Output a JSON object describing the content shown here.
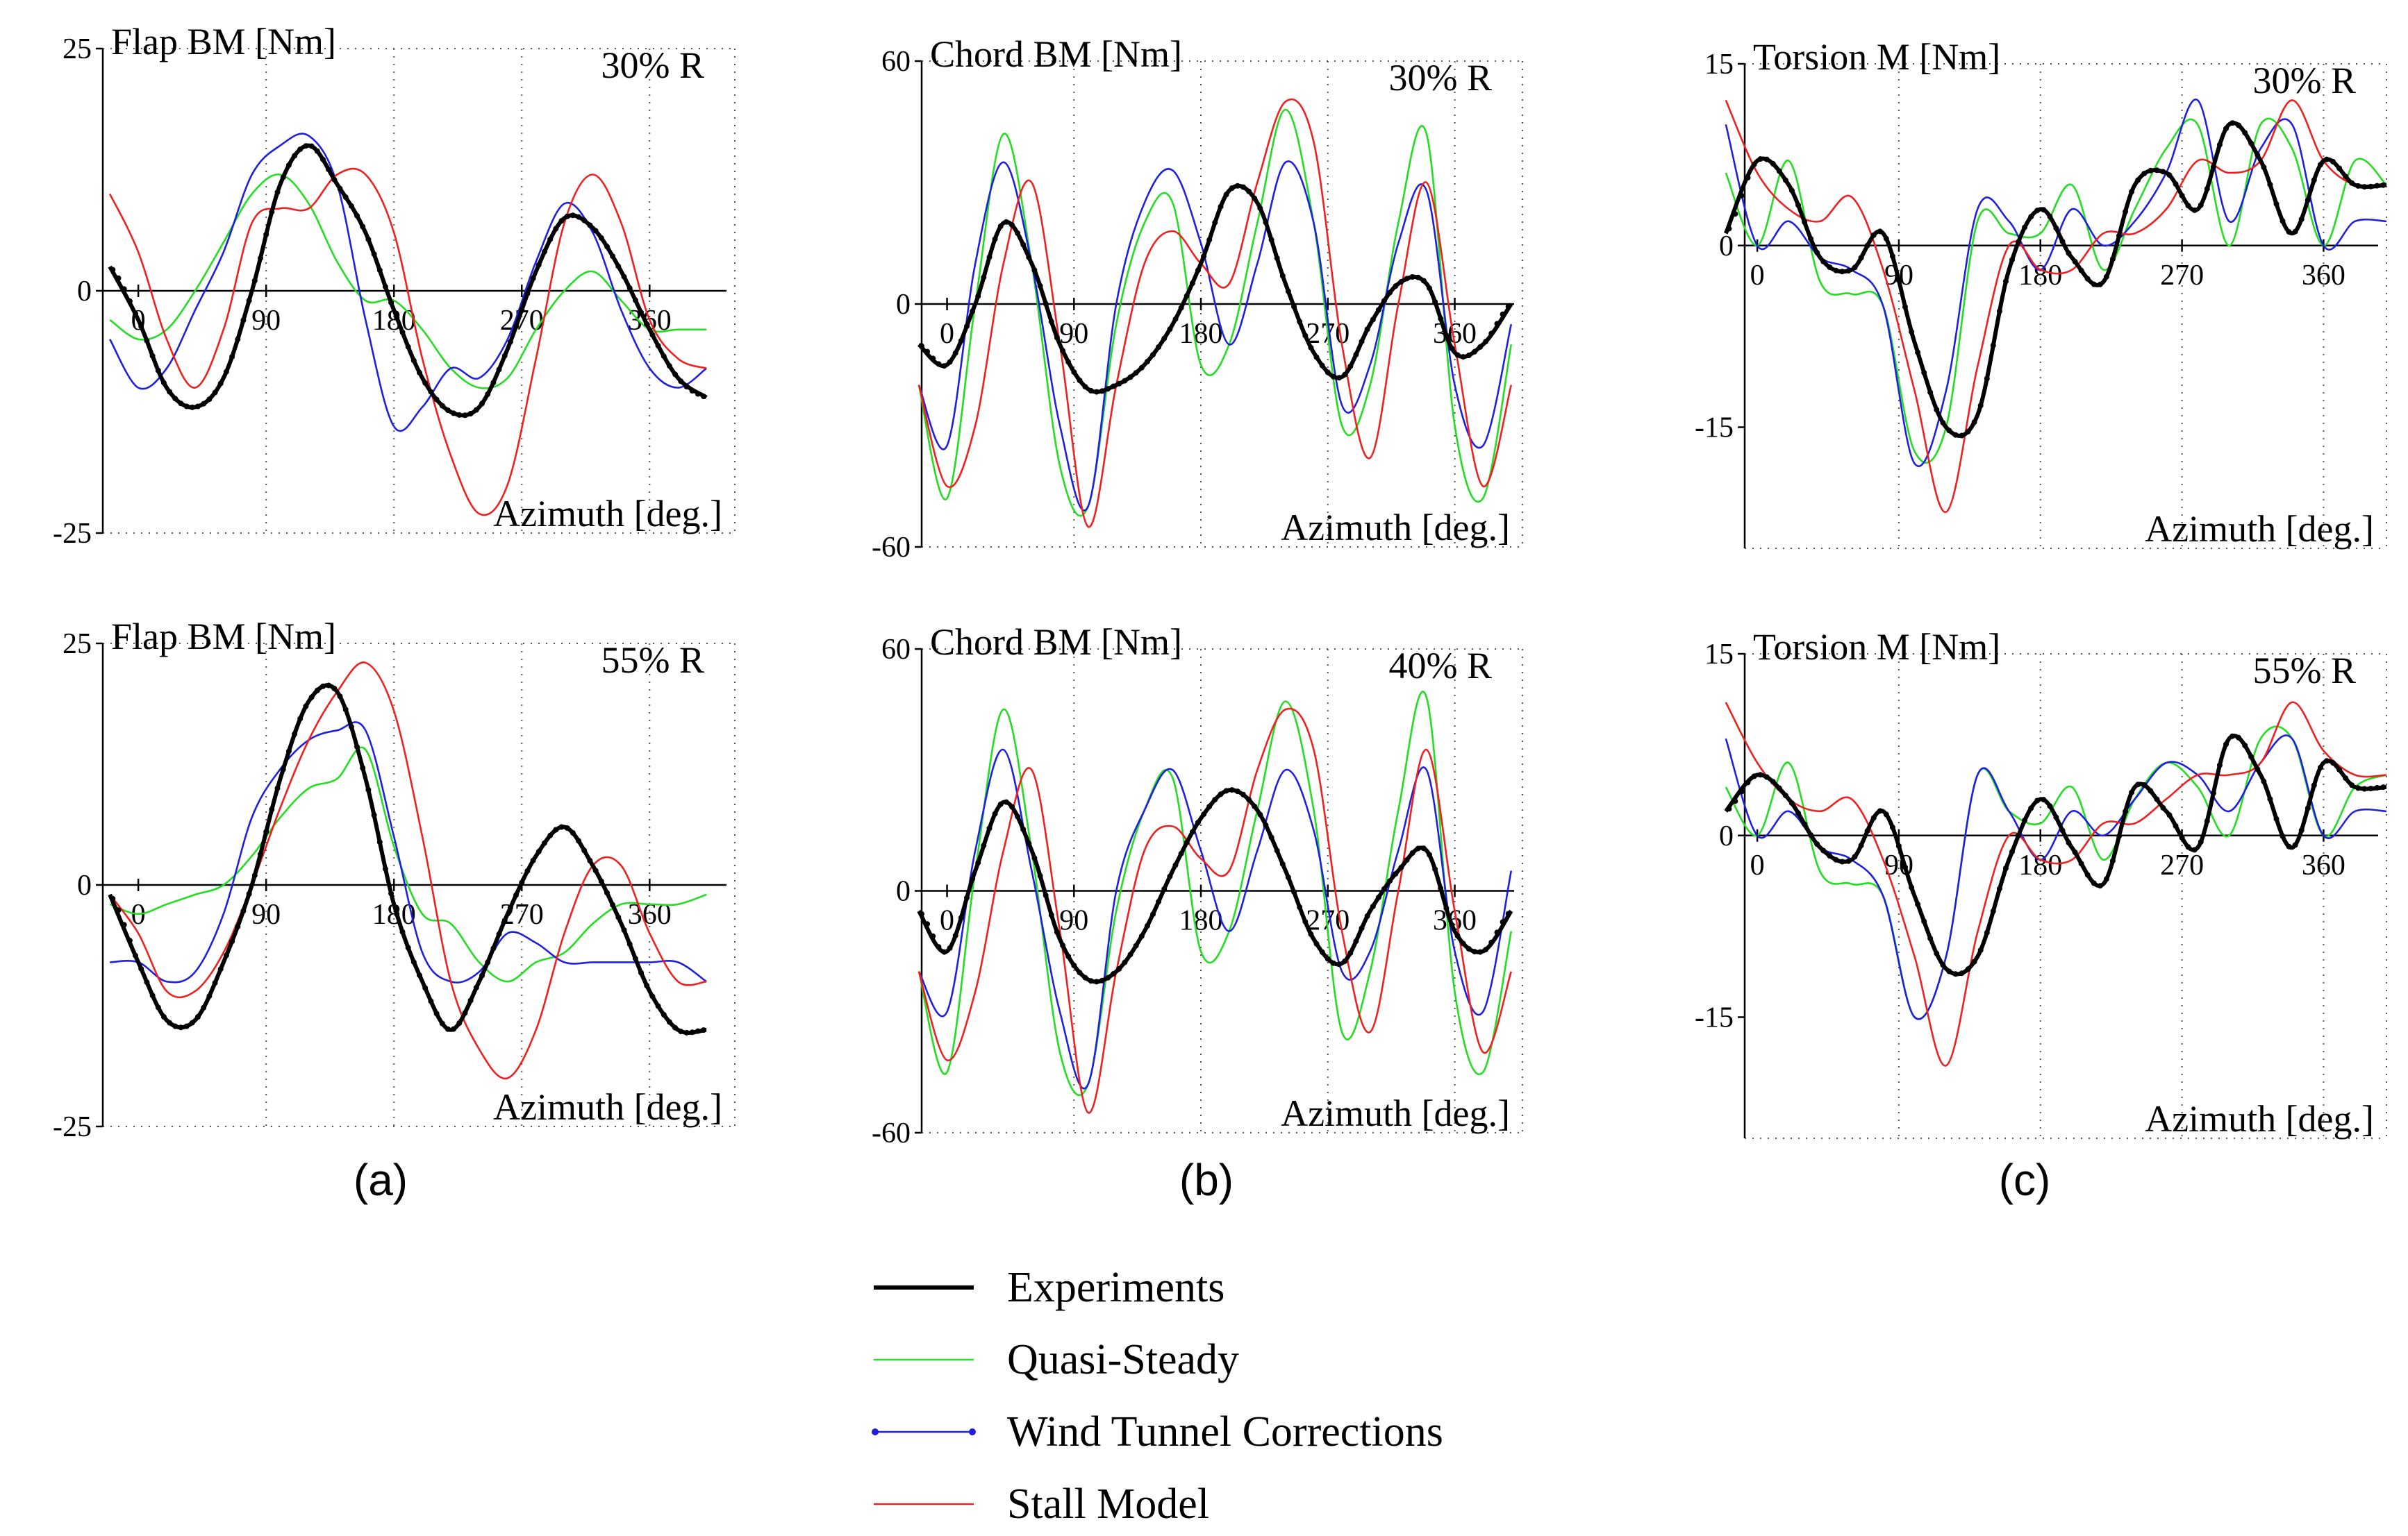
{
  "panel_labels": [
    "(a)",
    "(b)",
    "(c)"
  ],
  "legend": [
    {
      "label": "Experiments",
      "color": "#000000"
    },
    {
      "label": "Quasi-Steady",
      "color": "#22dd22"
    },
    {
      "label": "Wind Tunnel Corrections",
      "color": "#1f1fe0"
    },
    {
      "label": "Stall Model",
      "color": "#ee2020"
    }
  ],
  "chart_data": [
    {
      "type": "line",
      "title": "Flap BM [Nm]",
      "station": "30% R",
      "xlabel": "Azimuth [deg.]",
      "xlim": [
        -25,
        420
      ],
      "ylim": [
        -25,
        25
      ],
      "xticks": [
        0,
        90,
        180,
        270,
        360
      ],
      "yticks": [
        25,
        0,
        -25
      ],
      "x": [
        -20,
        0,
        20,
        40,
        60,
        80,
        100,
        120,
        140,
        160,
        180,
        200,
        220,
        240,
        260,
        280,
        300,
        320,
        340,
        360,
        380,
        400
      ],
      "series": [
        {
          "name": "Experiments",
          "values": [
            2.5,
            -3,
            -10,
            -12,
            -9,
            0,
            11,
            15,
            11,
            6,
            -2,
            -9,
            -12.5,
            -12,
            -6,
            2,
            7.5,
            6.5,
            2,
            -4,
            -9,
            -11
          ]
        },
        {
          "name": "Quasi-Steady",
          "values": [
            -3,
            -5,
            -4,
            0,
            5,
            10,
            12,
            9,
            3,
            -1,
            -1,
            -4,
            -8,
            -10,
            -9,
            -4,
            0,
            2,
            -1,
            -4,
            -4,
            -4
          ]
        },
        {
          "name": "Wind Tunnel Corrections",
          "values": [
            -5,
            -10,
            -8,
            -2,
            4,
            12,
            15,
            16,
            11,
            -3,
            -14,
            -12,
            -8,
            -9,
            -5,
            3,
            9,
            6,
            -2,
            -8,
            -10,
            -8
          ]
        },
        {
          "name": "Stall Model",
          "values": [
            10,
            4,
            -5,
            -10,
            -4,
            7,
            8.5,
            8.5,
            12,
            12,
            6,
            -7,
            -17,
            -23,
            -20,
            -7,
            7,
            12,
            7,
            -3,
            -7,
            -8
          ]
        }
      ]
    },
    {
      "type": "line",
      "title": "Chord BM [Nm]",
      "station": "30% R",
      "xlabel": "Azimuth [deg.]",
      "xlim": [
        -18,
        408
      ],
      "ylim": [
        -60,
        60
      ],
      "xticks": [
        0,
        90,
        180,
        270,
        360
      ],
      "yticks": [
        60,
        0,
        -60
      ],
      "x": [
        -20,
        0,
        20,
        40,
        60,
        80,
        100,
        120,
        140,
        160,
        180,
        200,
        220,
        240,
        260,
        280,
        300,
        320,
        340,
        360,
        380,
        400
      ],
      "series": [
        {
          "name": "Experiments",
          "values": [
            -10,
            -15,
            0,
            20,
            10,
            -10,
            -21,
            -20,
            -15,
            -5,
            10,
            28,
            25,
            5,
            -12,
            -18,
            -5,
            5,
            5,
            -12,
            -10,
            0
          ]
        },
        {
          "name": "Quasi-Steady",
          "values": [
            -20,
            -48,
            0,
            42,
            10,
            -40,
            -50,
            -5,
            20,
            25,
            -15,
            -10,
            20,
            48,
            20,
            -30,
            -20,
            20,
            42,
            -30,
            -48,
            -10
          ]
        },
        {
          "name": "Wind Tunnel Corrections",
          "values": [
            -20,
            -35,
            10,
            35,
            10,
            -30,
            -50,
            0,
            25,
            33,
            15,
            -10,
            10,
            35,
            20,
            -25,
            -15,
            15,
            28,
            -20,
            -35,
            -5
          ]
        },
        {
          "name": "Stall Model",
          "values": [
            -20,
            -45,
            -30,
            10,
            30,
            -10,
            -55,
            -20,
            10,
            18,
            10,
            5,
            30,
            50,
            40,
            -10,
            -38,
            0,
            30,
            -10,
            -45,
            -20
          ]
        }
      ]
    },
    {
      "type": "line",
      "title": "Torsion M [Nm]",
      "station": "30% R",
      "xlabel": "Azimuth [deg.]",
      "xlim": [
        -8,
        400
      ],
      "ylim": [
        -25,
        15
      ],
      "xticks": [
        0,
        90,
        180,
        270,
        360
      ],
      "yticks": [
        15,
        0,
        -15
      ],
      "x": [
        -20,
        0,
        20,
        40,
        60,
        80,
        100,
        120,
        140,
        160,
        180,
        200,
        220,
        240,
        260,
        280,
        300,
        320,
        340,
        360,
        380,
        400
      ],
      "series": [
        {
          "name": "Experiments",
          "values": [
            1,
            7,
            5,
            -1,
            -2,
            1,
            -8,
            -15,
            -14,
            -2,
            3,
            -1,
            -3,
            5,
            6,
            3,
            10,
            7,
            1,
            7,
            5,
            5
          ]
        },
        {
          "name": "Quasi-Steady",
          "values": [
            6,
            0,
            7,
            -3,
            -4,
            -5,
            -17,
            -15,
            2,
            1,
            1,
            5,
            -2,
            3,
            8,
            10,
            0,
            10,
            8,
            0,
            7,
            5
          ]
        },
        {
          "name": "Wind Tunnel Corrections",
          "values": [
            10,
            0,
            2,
            -1,
            -2,
            -5,
            -18,
            -12,
            3,
            2,
            -2,
            3,
            0,
            2,
            6,
            12,
            2,
            8,
            10,
            0,
            2,
            2
          ]
        },
        {
          "name": "Stall Model",
          "values": [
            12,
            6,
            3,
            2,
            4,
            -2,
            -12,
            -22,
            -10,
            0,
            -2,
            -2,
            1,
            1,
            3,
            7,
            6,
            7,
            12,
            7,
            5,
            5
          ]
        }
      ]
    },
    {
      "type": "line",
      "title": "Flap BM [Nm]",
      "station": "55% R",
      "xlabel": "Azimuth [deg.]",
      "xlim": [
        -25,
        420
      ],
      "ylim": [
        -25,
        25
      ],
      "xticks": [
        0,
        90,
        180,
        270,
        360
      ],
      "yticks": [
        25,
        0,
        -25
      ],
      "x": [
        -20,
        0,
        20,
        40,
        60,
        80,
        100,
        120,
        140,
        160,
        180,
        200,
        220,
        240,
        260,
        280,
        300,
        320,
        340,
        360,
        380,
        400
      ],
      "series": [
        {
          "name": "Experiments",
          "values": [
            -1,
            -8,
            -14,
            -14,
            -8,
            0,
            11,
            19,
            20,
            11,
            -2,
            -10,
            -15,
            -10,
            -3,
            3,
            6,
            2,
            -4,
            -11,
            -15,
            -15
          ]
        },
        {
          "name": "Quasi-Steady",
          "values": [
            -2,
            -3,
            -2,
            -1,
            0,
            3,
            7,
            10,
            11,
            14,
            4,
            -3,
            -4,
            -8,
            -10,
            -8,
            -7,
            -4,
            -2,
            -2,
            -2,
            -1
          ]
        },
        {
          "name": "Wind Tunnel Corrections",
          "values": [
            -8,
            -8,
            -10,
            -9,
            -3,
            7,
            12,
            15,
            16,
            16,
            5,
            -7,
            -10,
            -9,
            -5,
            -6,
            -8,
            -8,
            -8,
            -8,
            -8,
            -10
          ]
        },
        {
          "name": "Stall Model",
          "values": [
            -1,
            -5,
            -11,
            -11,
            -7,
            0,
            8,
            15,
            20,
            23,
            18,
            5,
            -10,
            -17,
            -20,
            -15,
            -5,
            2,
            2,
            -5,
            -10,
            -10
          ]
        }
      ]
    },
    {
      "type": "line",
      "title": "Chord BM [Nm]",
      "station": "40% R",
      "xlabel": "Azimuth [deg.]",
      "xlim": [
        -18,
        408
      ],
      "ylim": [
        -60,
        60
      ],
      "xticks": [
        0,
        90,
        180,
        270,
        360
      ],
      "yticks": [
        60,
        0,
        -60
      ],
      "x": [
        -20,
        0,
        20,
        40,
        60,
        80,
        100,
        120,
        140,
        160,
        180,
        200,
        220,
        240,
        260,
        280,
        300,
        320,
        340,
        360,
        380,
        400
      ],
      "series": [
        {
          "name": "Experiments",
          "values": [
            -5,
            -15,
            5,
            22,
            10,
            -12,
            -22,
            -20,
            -10,
            5,
            18,
            25,
            20,
            5,
            -12,
            -18,
            -5,
            5,
            10,
            -10,
            -15,
            -5
          ]
        },
        {
          "name": "Quasi-Steady",
          "values": [
            -20,
            -45,
            5,
            45,
            10,
            -40,
            -48,
            -5,
            20,
            28,
            -15,
            -10,
            20,
            47,
            20,
            -35,
            -20,
            20,
            48,
            -25,
            -45,
            -10
          ]
        },
        {
          "name": "Wind Tunnel Corrections",
          "values": [
            -20,
            -30,
            10,
            35,
            5,
            -30,
            -48,
            0,
            20,
            30,
            10,
            -10,
            10,
            30,
            15,
            -20,
            -15,
            10,
            30,
            -15,
            -30,
            5
          ]
        },
        {
          "name": "Stall Model",
          "values": [
            -20,
            -42,
            -25,
            10,
            30,
            -10,
            -55,
            -20,
            10,
            16,
            8,
            5,
            30,
            45,
            35,
            -10,
            -35,
            0,
            35,
            -5,
            -40,
            -20
          ]
        }
      ]
    },
    {
      "type": "line",
      "title": "Torsion M [Nm]",
      "station": "55% R",
      "xlabel": "Azimuth [deg.]",
      "xlim": [
        -8,
        400
      ],
      "ylim": [
        -25,
        15
      ],
      "xticks": [
        0,
        90,
        180,
        270,
        360
      ],
      "yticks": [
        15,
        0,
        -15
      ],
      "x": [
        -20,
        0,
        20,
        40,
        60,
        80,
        100,
        120,
        140,
        160,
        180,
        200,
        220,
        240,
        260,
        280,
        300,
        320,
        340,
        360,
        380,
        400
      ],
      "series": [
        {
          "name": "Experiments",
          "values": [
            2,
            5,
            3,
            -1,
            -2,
            2,
            -5,
            -11,
            -10,
            -2,
            3,
            -1,
            -4,
            4,
            2,
            -1,
            8,
            5,
            -1,
            6,
            4,
            4
          ]
        },
        {
          "name": "Quasi-Steady",
          "values": [
            4,
            0,
            6,
            -3,
            -4,
            -5,
            -15,
            -10,
            5,
            2,
            1,
            4,
            -2,
            3,
            6,
            4,
            0,
            8,
            8,
            0,
            4,
            5
          ]
        },
        {
          "name": "Wind Tunnel Corrections",
          "values": [
            8,
            0,
            2,
            -1,
            -2,
            -5,
            -15,
            -10,
            5,
            2,
            -2,
            2,
            0,
            3,
            6,
            5,
            2,
            6,
            8,
            0,
            2,
            2
          ]
        },
        {
          "name": "Stall Model",
          "values": [
            11,
            6,
            3,
            2,
            3,
            -2,
            -10,
            -19,
            -8,
            0,
            -2,
            -2,
            1,
            1,
            3,
            5,
            5,
            6,
            11,
            7,
            5,
            5
          ]
        }
      ]
    }
  ]
}
